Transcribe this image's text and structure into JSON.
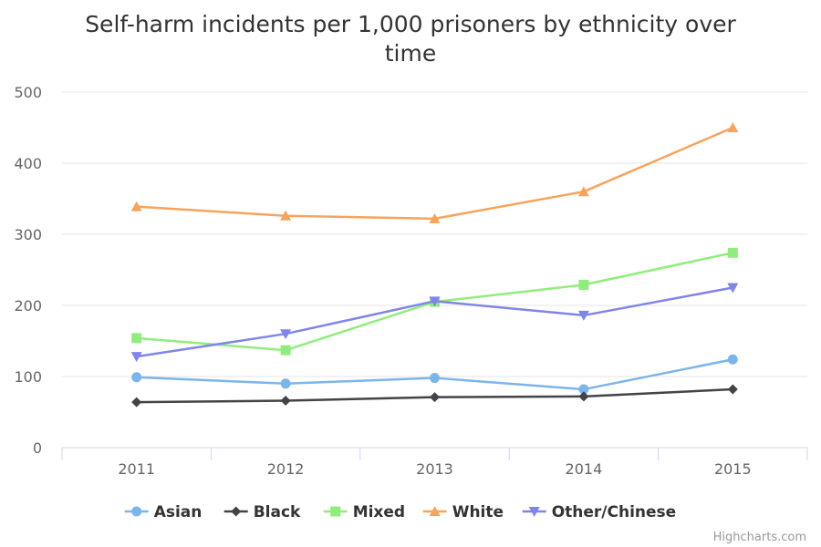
{
  "chart_data": {
    "type": "line",
    "title_line1": "Self-harm incidents per 1,000 prisoners by ethnicity over",
    "title_line2": "time",
    "categories": [
      "2011",
      "2012",
      "2013",
      "2014",
      "2015"
    ],
    "ylim": [
      0,
      500
    ],
    "yticks": [
      0,
      100,
      200,
      300,
      400,
      500
    ],
    "grid": true,
    "legend_position": "bottom",
    "series": [
      {
        "name": "Asian",
        "color": "#7cb5ec",
        "marker": "circle",
        "values": [
          99,
          90,
          98,
          82,
          124
        ]
      },
      {
        "name": "Black",
        "color": "#434348",
        "marker": "diamond",
        "values": [
          64,
          66,
          71,
          72,
          82
        ]
      },
      {
        "name": "Mixed",
        "color": "#90ed7d",
        "marker": "square",
        "values": [
          154,
          137,
          205,
          229,
          274
        ]
      },
      {
        "name": "White",
        "color": "#f7a35c",
        "marker": "triangle",
        "values": [
          339,
          326,
          322,
          360,
          450
        ]
      },
      {
        "name": "Other/Chinese",
        "color": "#8085e9",
        "marker": "triangle-down",
        "values": [
          128,
          160,
          206,
          186,
          225
        ]
      }
    ]
  },
  "credits": "Highcharts.com"
}
